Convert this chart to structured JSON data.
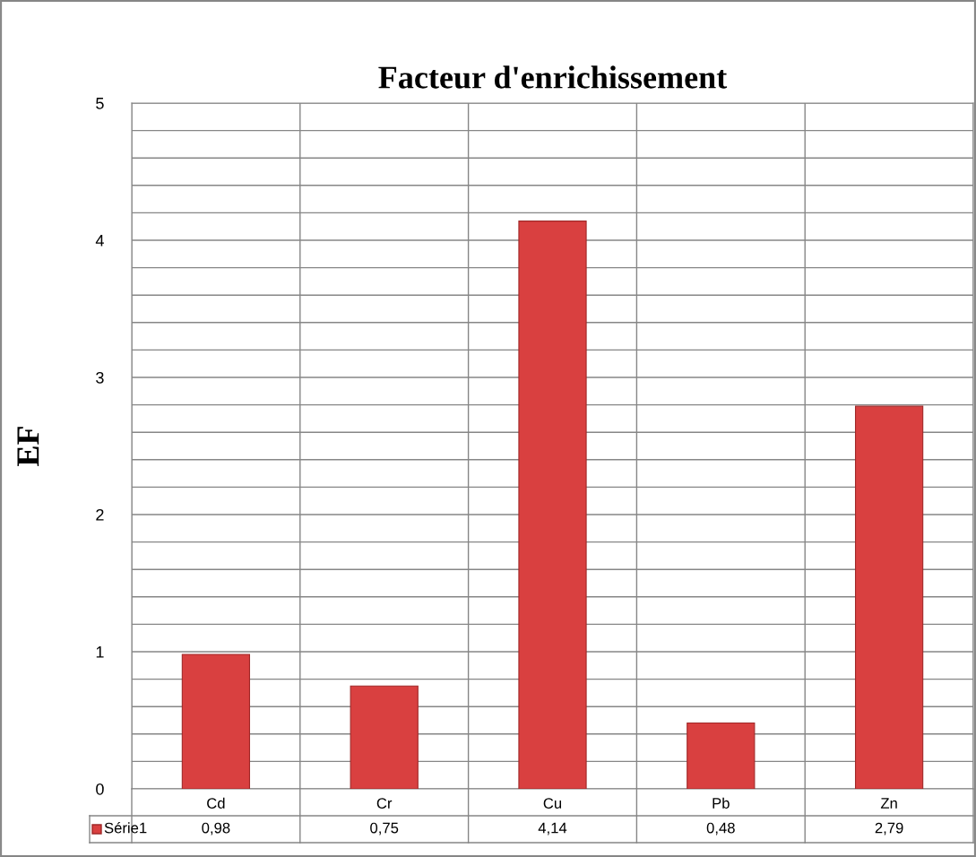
{
  "chart_data": {
    "type": "bar",
    "title": "Facteur d'enrichissement",
    "ylabel": "EF",
    "categories": [
      "Cd",
      "Cr",
      "Cu",
      "Pb",
      "Zn"
    ],
    "series": [
      {
        "name": "Série1",
        "color": "#d94040",
        "values": [
          0.98,
          0.75,
          4.14,
          0.48,
          2.79
        ],
        "value_labels": [
          "0,98",
          "0,75",
          "4,14",
          "0,48",
          "2,79"
        ]
      }
    ],
    "ylim": [
      0,
      5
    ],
    "yticks": [
      0,
      {
        "value": 0.2,
        "label": null
      },
      {
        "value": 0.4,
        "label": null
      },
      {
        "value": 0.6,
        "label": null
      },
      {
        "value": 0.8,
        "label": null
      },
      1,
      {
        "value": 1.2,
        "label": null
      },
      {
        "value": 1.4,
        "label": null
      },
      {
        "value": 1.6,
        "label": null
      },
      {
        "value": 1.8,
        "label": null
      },
      2,
      {
        "value": 2.2,
        "label": null
      },
      {
        "value": 2.4,
        "label": null
      },
      {
        "value": 2.6,
        "label": null
      },
      {
        "value": 2.8,
        "label": null
      },
      3,
      {
        "value": 3.2,
        "label": null
      },
      {
        "value": 3.4,
        "label": null
      },
      {
        "value": 3.6,
        "label": null
      },
      {
        "value": 3.8,
        "label": null
      },
      4,
      {
        "value": 4.2,
        "label": null
      },
      {
        "value": 4.4,
        "label": null
      },
      {
        "value": 4.6,
        "label": null
      },
      {
        "value": 4.8,
        "label": null
      },
      5
    ],
    "grid": true
  }
}
